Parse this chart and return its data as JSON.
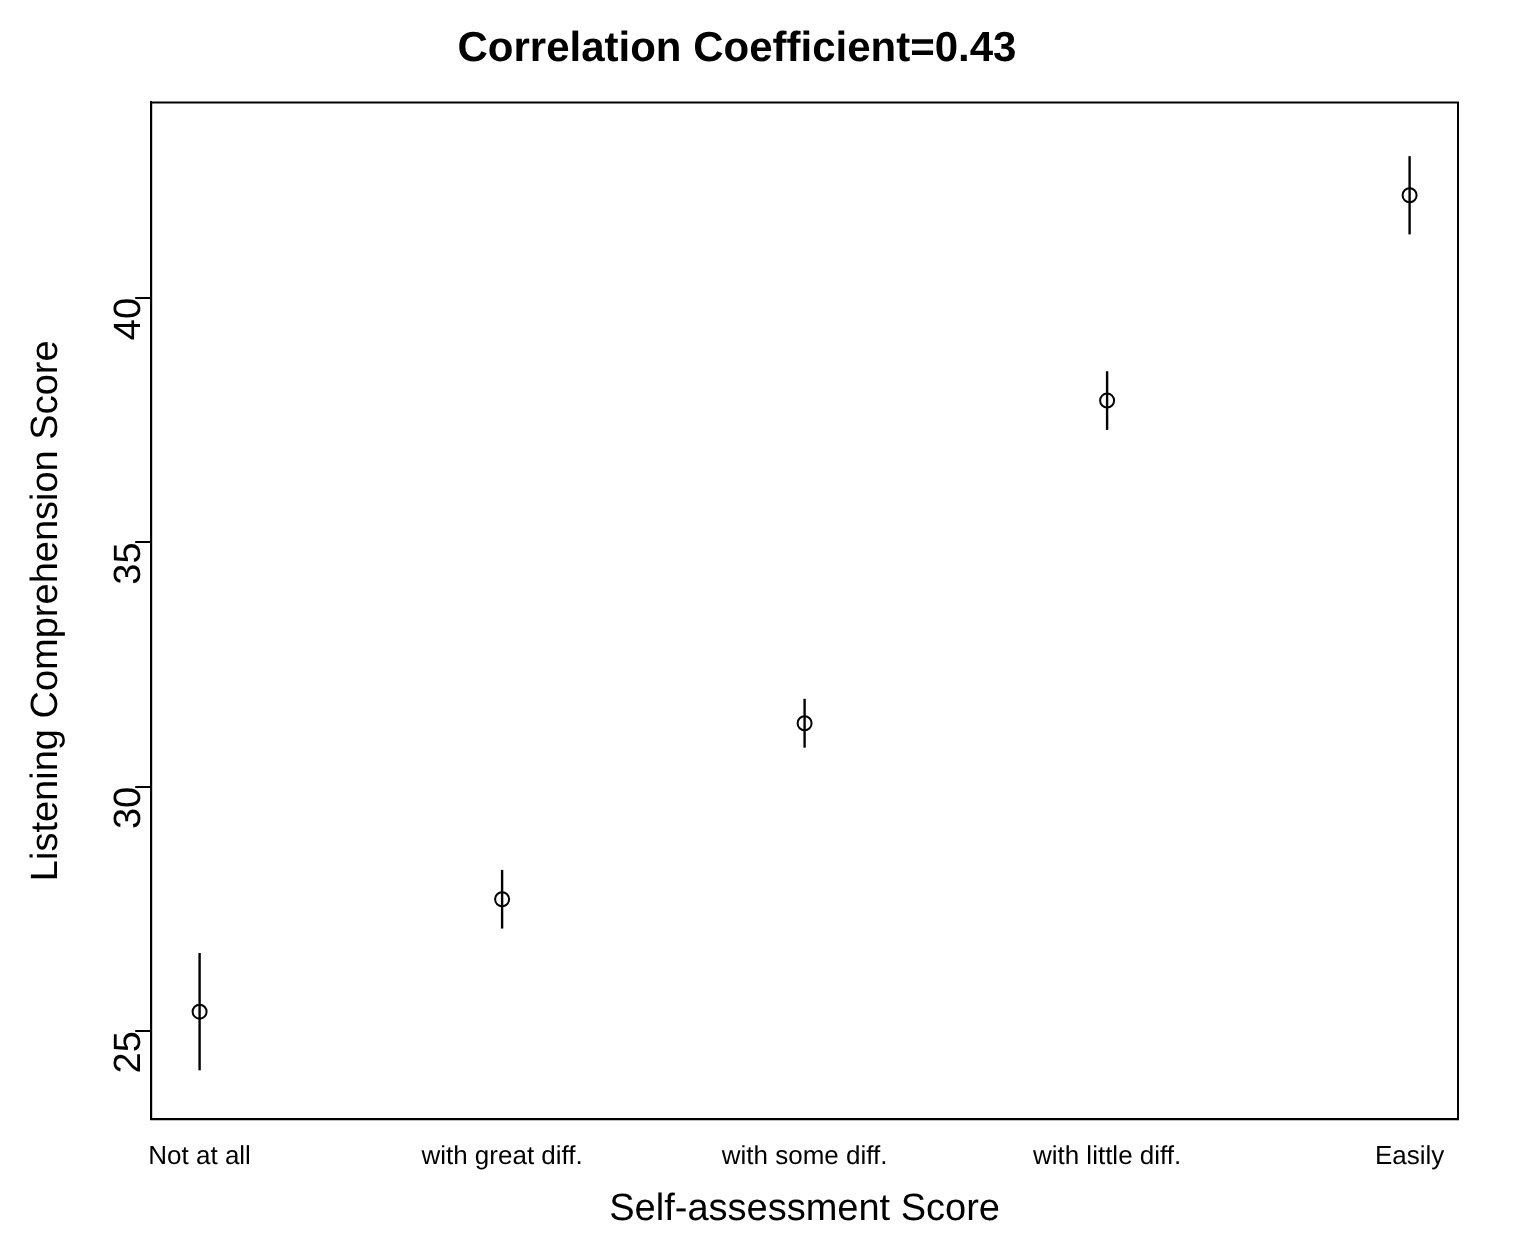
{
  "chart_data": {
    "type": "scatter",
    "title": "Correlation Coefficient=0.43",
    "xlabel": "Self-assessment Score",
    "ylabel": "Listening Comprehension Score",
    "categories": [
      "Not at all",
      "with great diff.",
      "with some diff.",
      "with little diff.",
      "Easily"
    ],
    "series": [
      {
        "color": "#000000",
        "values": [
          25.4,
          27.7,
          31.3,
          37.9,
          42.1
        ],
        "errors": [
          1.2,
          0.6,
          0.5,
          0.6,
          0.8
        ]
      }
    ],
    "ylim": [
      23.2,
      44
    ],
    "yticks": [
      25,
      30,
      35,
      40
    ],
    "grid": false,
    "legend": false,
    "marker": "circle"
  }
}
